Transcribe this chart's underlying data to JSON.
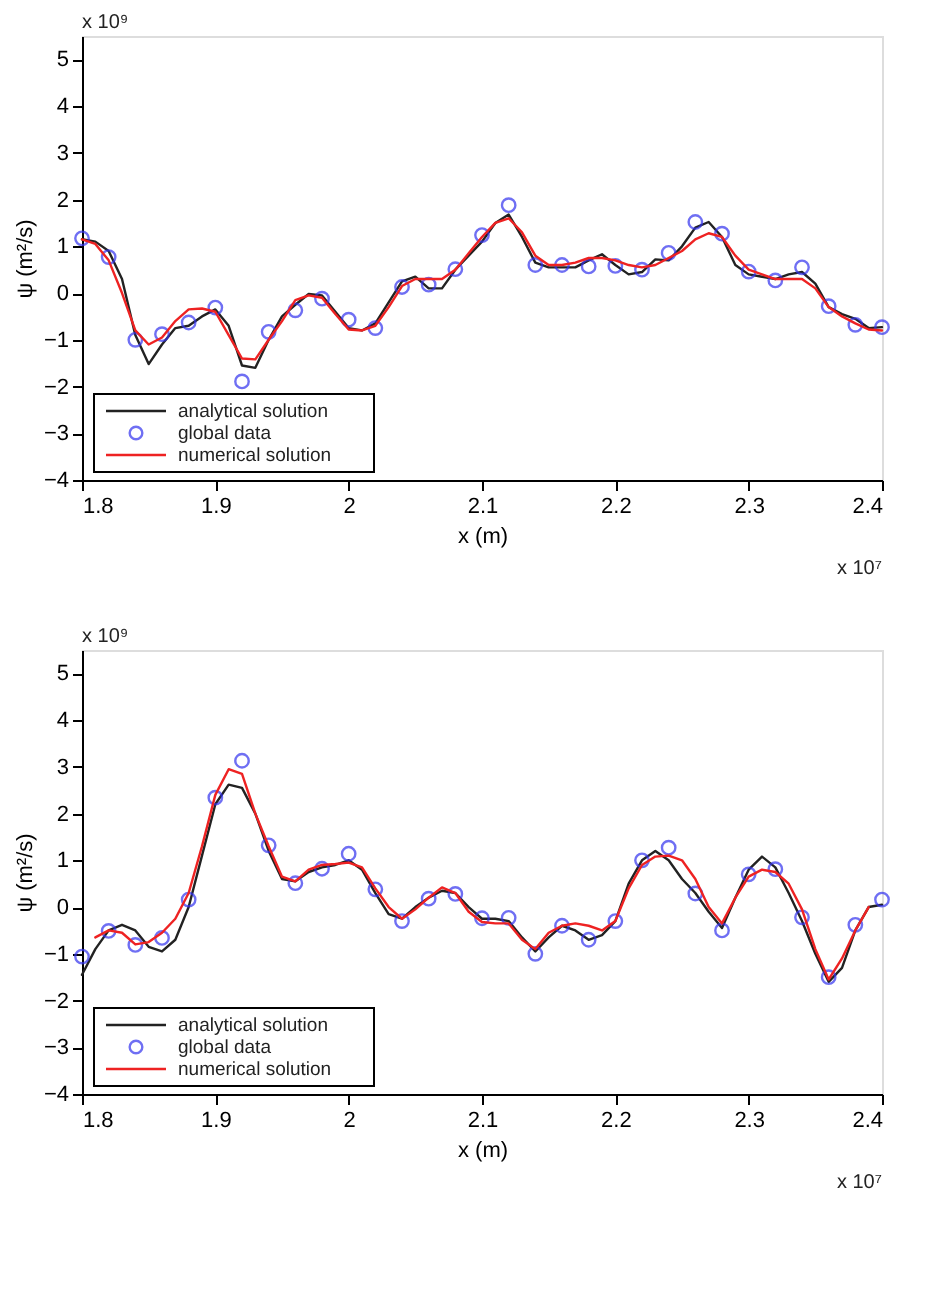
{
  "chart_data": [
    {
      "type": "line",
      "xlabel": "x (m)",
      "ylabel": "ψ (m²/s)",
      "xlim": [
        1.8,
        2.4
      ],
      "ylim": [
        -4,
        5.5
      ],
      "xticks": [
        1.8,
        1.9,
        2,
        2.1,
        2.2,
        2.3,
        2.4
      ],
      "yticks": [
        -4,
        -3,
        -2,
        -1,
        0,
        1,
        2,
        3,
        4,
        5
      ],
      "grid": false,
      "legend": "bottom left",
      "annotations": [
        "x 10⁹",
        "x 10⁷"
      ],
      "x": [
        1.8,
        1.82,
        1.84,
        1.86,
        1.88,
        1.9,
        1.92,
        1.94,
        1.96,
        1.98,
        2.0,
        2.02,
        2.04,
        2.06,
        2.08,
        2.1,
        2.12,
        2.14,
        2.16,
        2.18,
        2.2,
        2.22,
        2.24,
        2.26,
        2.28,
        2.3,
        2.32,
        2.34,
        2.36,
        2.38,
        2.4
      ],
      "series": [
        {
          "name": "analytical solution",
          "color": "#222222",
          "x": [
            1.8,
            1.81,
            1.82,
            1.83,
            1.84,
            1.85,
            1.86,
            1.87,
            1.88,
            1.89,
            1.9,
            1.91,
            1.92,
            1.93,
            1.94,
            1.95,
            1.96,
            1.97,
            1.98,
            1.99,
            2.0,
            2.01,
            2.02,
            2.03,
            2.04,
            2.05,
            2.06,
            2.07,
            2.08,
            2.09,
            2.1,
            2.11,
            2.12,
            2.13,
            2.14,
            2.15,
            2.16,
            2.17,
            2.18,
            2.19,
            2.2,
            2.21,
            2.22,
            2.23,
            2.24,
            2.25,
            2.26,
            2.27,
            2.28,
            2.29,
            2.3,
            2.31,
            2.32,
            2.33,
            2.34,
            2.35,
            2.36,
            2.37,
            2.38,
            2.39,
            2.4
          ],
          "values": [
            1.15,
            1.1,
            0.9,
            0.3,
            -0.9,
            -1.52,
            -1.1,
            -0.75,
            -0.7,
            -0.5,
            -0.35,
            -0.7,
            -1.55,
            -1.6,
            -1.0,
            -0.5,
            -0.25,
            -0.02,
            -0.05,
            -0.4,
            -0.75,
            -0.8,
            -0.65,
            -0.2,
            0.25,
            0.35,
            0.1,
            0.1,
            0.5,
            0.8,
            1.1,
            1.5,
            1.68,
            1.2,
            0.65,
            0.55,
            0.55,
            0.55,
            0.7,
            0.83,
            0.6,
            0.4,
            0.45,
            0.72,
            0.7,
            1.0,
            1.4,
            1.52,
            1.2,
            0.6,
            0.4,
            0.35,
            0.3,
            0.4,
            0.45,
            0.2,
            -0.3,
            -0.45,
            -0.55,
            -0.75,
            -0.73
          ]
        },
        {
          "name": "global data",
          "type": "scatter",
          "marker": "circle",
          "color": "#3333ee",
          "values": [
            1.17,
            0.77,
            -1.0,
            -0.88,
            -0.63,
            -0.31,
            -1.89,
            -0.83,
            -0.37,
            -0.12,
            -0.57,
            -0.75,
            0.13,
            0.18,
            0.51,
            1.24,
            1.88,
            0.6,
            0.6,
            0.57,
            0.58,
            0.5,
            0.86,
            1.52,
            1.27,
            0.46,
            0.27,
            0.55,
            -0.28,
            -0.68,
            -0.73
          ]
        },
        {
          "name": "numerical solution",
          "color": "#ee2222",
          "x": [
            1.8,
            1.81,
            1.82,
            1.83,
            1.84,
            1.85,
            1.86,
            1.87,
            1.88,
            1.89,
            1.9,
            1.91,
            1.92,
            1.93,
            1.94,
            1.95,
            1.96,
            1.97,
            1.98,
            1.99,
            2.0,
            2.01,
            2.02,
            2.03,
            2.04,
            2.05,
            2.06,
            2.07,
            2.08,
            2.09,
            2.1,
            2.11,
            2.12,
            2.13,
            2.14,
            2.15,
            2.16,
            2.17,
            2.18,
            2.19,
            2.2,
            2.21,
            2.22,
            2.23,
            2.24,
            2.25,
            2.26,
            2.27,
            2.28,
            2.29,
            2.3,
            2.31,
            2.32,
            2.33,
            2.34,
            2.35,
            2.36,
            2.37,
            2.38,
            2.39,
            2.4
          ],
          "values": [
            1.15,
            1.05,
            0.7,
            0.0,
            -0.8,
            -1.1,
            -0.95,
            -0.6,
            -0.35,
            -0.33,
            -0.4,
            -0.9,
            -1.4,
            -1.42,
            -1.0,
            -0.6,
            -0.15,
            -0.05,
            -0.1,
            -0.45,
            -0.78,
            -0.8,
            -0.7,
            -0.3,
            0.15,
            0.3,
            0.3,
            0.3,
            0.5,
            0.85,
            1.2,
            1.5,
            1.6,
            1.3,
            0.8,
            0.6,
            0.6,
            0.65,
            0.75,
            0.75,
            0.7,
            0.6,
            0.55,
            0.6,
            0.75,
            0.9,
            1.15,
            1.28,
            1.2,
            0.8,
            0.5,
            0.4,
            0.3,
            0.3,
            0.3,
            0.1,
            -0.3,
            -0.5,
            -0.65,
            -0.78,
            -0.8
          ]
        }
      ]
    },
    {
      "type": "line",
      "xlabel": "x (m)",
      "ylabel": "ψ (m²/s)",
      "xlim": [
        1.8,
        2.4
      ],
      "ylim": [
        -4,
        5.5
      ],
      "xticks": [
        1.8,
        1.9,
        2,
        2.1,
        2.2,
        2.3,
        2.4
      ],
      "yticks": [
        -4,
        -3,
        -2,
        -1,
        0,
        1,
        2,
        3,
        4,
        5
      ],
      "grid": false,
      "legend": "bottom left",
      "annotations": [
        "x 10⁹",
        "x 10⁷"
      ],
      "x": [
        1.8,
        1.82,
        1.84,
        1.86,
        1.88,
        1.9,
        1.92,
        1.94,
        1.96,
        1.98,
        2.0,
        2.02,
        2.04,
        2.06,
        2.08,
        2.1,
        2.12,
        2.14,
        2.16,
        2.18,
        2.2,
        2.22,
        2.24,
        2.26,
        2.28,
        2.3,
        2.32,
        2.34,
        2.36,
        2.38,
        2.4
      ],
      "series": [
        {
          "name": "analytical solution",
          "color": "#222222",
          "x": [
            1.8,
            1.81,
            1.82,
            1.83,
            1.84,
            1.85,
            1.86,
            1.87,
            1.88,
            1.89,
            1.9,
            1.91,
            1.92,
            1.93,
            1.94,
            1.95,
            1.96,
            1.97,
            1.98,
            1.99,
            2.0,
            2.01,
            2.02,
            2.03,
            2.04,
            2.05,
            2.06,
            2.07,
            2.08,
            2.09,
            2.1,
            2.11,
            2.12,
            2.13,
            2.14,
            2.15,
            2.16,
            2.17,
            2.18,
            2.19,
            2.2,
            2.21,
            2.22,
            2.23,
            2.24,
            2.25,
            2.26,
            2.27,
            2.28,
            2.29,
            2.3,
            2.31,
            2.32,
            2.33,
            2.34,
            2.35,
            2.36,
            2.37,
            2.38,
            2.39,
            2.4
          ],
          "values": [
            -1.45,
            -0.9,
            -0.5,
            -0.38,
            -0.5,
            -0.85,
            -0.95,
            -0.7,
            0.0,
            1.1,
            2.2,
            2.62,
            2.55,
            2.0,
            1.2,
            0.6,
            0.55,
            0.75,
            0.85,
            0.9,
            1.0,
            0.8,
            0.3,
            -0.15,
            -0.25,
            0.0,
            0.2,
            0.35,
            0.3,
            0.0,
            -0.25,
            -0.25,
            -0.3,
            -0.65,
            -0.95,
            -0.65,
            -0.4,
            -0.5,
            -0.7,
            -0.6,
            -0.3,
            0.5,
            1.0,
            1.2,
            1.0,
            0.6,
            0.3,
            -0.1,
            -0.45,
            0.2,
            0.8,
            1.08,
            0.85,
            0.3,
            -0.3,
            -1.0,
            -1.6,
            -1.3,
            -0.5,
            0.0,
            0.05
          ]
        },
        {
          "name": "global data",
          "type": "scatter",
          "marker": "circle",
          "color": "#3333ee",
          "values": [
            -1.06,
            -0.51,
            -0.81,
            -0.66,
            0.16,
            2.34,
            3.13,
            1.32,
            0.51,
            0.82,
            1.14,
            0.38,
            -0.3,
            0.18,
            0.28,
            -0.24,
            -0.23,
            -1.0,
            -0.4,
            -0.7,
            -0.3,
            1.0,
            1.27,
            0.29,
            -0.5,
            0.7,
            0.81,
            -0.22,
            -1.5,
            -0.38,
            0.16
          ]
        },
        {
          "name": "numerical solution",
          "color": "#ee2222",
          "x": [
            1.81,
            1.82,
            1.83,
            1.84,
            1.85,
            1.86,
            1.87,
            1.88,
            1.89,
            1.9,
            1.91,
            1.92,
            1.93,
            1.94,
            1.95,
            1.96,
            1.97,
            1.98,
            1.99,
            2.0,
            2.01,
            2.02,
            2.03,
            2.04,
            2.05,
            2.06,
            2.07,
            2.08,
            2.09,
            2.1,
            2.11,
            2.12,
            2.13,
            2.14,
            2.15,
            2.16,
            2.17,
            2.18,
            2.19,
            2.2,
            2.21,
            2.22,
            2.23,
            2.24,
            2.25,
            2.26,
            2.27,
            2.28,
            2.29,
            2.3,
            2.31,
            2.32,
            2.33,
            2.34,
            2.35,
            2.36,
            2.37,
            2.38,
            2.39
          ],
          "values": [
            -0.65,
            -0.5,
            -0.55,
            -0.8,
            -0.75,
            -0.55,
            -0.25,
            0.3,
            1.3,
            2.4,
            2.95,
            2.85,
            2.0,
            1.3,
            0.65,
            0.55,
            0.8,
            0.9,
            0.92,
            0.95,
            0.85,
            0.4,
            0.0,
            -0.25,
            -0.05,
            0.2,
            0.42,
            0.3,
            -0.1,
            -0.32,
            -0.35,
            -0.35,
            -0.7,
            -0.9,
            -0.55,
            -0.4,
            -0.35,
            -0.4,
            -0.5,
            -0.3,
            0.4,
            0.9,
            1.08,
            1.1,
            1.0,
            0.6,
            0.0,
            -0.35,
            0.2,
            0.65,
            0.8,
            0.75,
            0.5,
            -0.05,
            -0.9,
            -1.55,
            -1.1,
            -0.5,
            0.0
          ]
        }
      ]
    }
  ]
}
